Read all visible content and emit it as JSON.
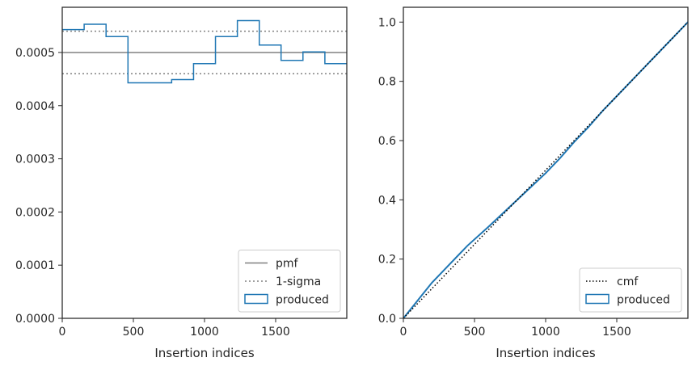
{
  "chart_data": [
    {
      "type": "line",
      "panel": "left",
      "xlabel": "Insertion indices",
      "ylabel": "",
      "xlim": [
        0,
        2000
      ],
      "ylim": [
        0,
        0.000585
      ],
      "xticks": [
        0,
        500,
        1000,
        1500
      ],
      "xtick_labels": [
        "0",
        "500",
        "1000",
        "1500"
      ],
      "yticks": [
        0,
        0.0001,
        0.0002,
        0.0003,
        0.0004,
        0.0005
      ],
      "ytick_labels": [
        "0.0000",
        "0.0001",
        "0.0002",
        "0.0003",
        "0.0004",
        "0.0005"
      ],
      "grid": false,
      "legend_position": "lower-right",
      "legend": [
        "pmf",
        "1-sigma",
        "produced"
      ],
      "colors": {
        "pmf": "#808080",
        "sigma": "#808080",
        "produced": "#1f77b4"
      },
      "pmf": 0.0005,
      "sigma_band": [
        0.00046,
        0.00054
      ],
      "produced_histogram": {
        "bin_edges": [
          0,
          154,
          308,
          462,
          615,
          769,
          923,
          1077,
          1231,
          1385,
          1538,
          1692,
          1846,
          2000
        ],
        "values": [
          0.000543,
          0.000553,
          0.00053,
          0.000443,
          0.000443,
          0.000449,
          0.000479,
          0.00053,
          0.00056,
          0.000514,
          0.000485,
          0.000501,
          0.000479
        ]
      }
    },
    {
      "type": "line",
      "panel": "right",
      "xlabel": "Insertion indices",
      "ylabel": "",
      "xlim": [
        0,
        2000
      ],
      "ylim": [
        0,
        1.05
      ],
      "xticks": [
        0,
        500,
        1000,
        1500
      ],
      "xtick_labels": [
        "0",
        "500",
        "1000",
        "1500"
      ],
      "yticks": [
        0,
        0.2,
        0.4,
        0.6,
        0.8,
        1.0
      ],
      "ytick_labels": [
        "0.0",
        "0.2",
        "0.4",
        "0.6",
        "0.8",
        "1.0"
      ],
      "grid": false,
      "legend_position": "lower-right",
      "legend": [
        "cmf",
        "produced"
      ],
      "colors": {
        "cmf": "#000000",
        "produced": "#1f77b4"
      },
      "cmf": {
        "x": [
          0,
          2000
        ],
        "y": [
          0,
          1
        ]
      },
      "produced_cdf": {
        "x": [
          0,
          50,
          100,
          150,
          200,
          300,
          380,
          450,
          600,
          700,
          800,
          900,
          1000,
          1100,
          1200,
          1300,
          1400,
          1500,
          1600,
          1700,
          1800,
          1900,
          2000
        ],
        "y": [
          0,
          0.03,
          0.06,
          0.09,
          0.12,
          0.17,
          0.21,
          0.245,
          0.31,
          0.355,
          0.4,
          0.445,
          0.49,
          0.54,
          0.595,
          0.645,
          0.7,
          0.75,
          0.8,
          0.85,
          0.9,
          0.95,
          1.0
        ]
      }
    }
  ]
}
